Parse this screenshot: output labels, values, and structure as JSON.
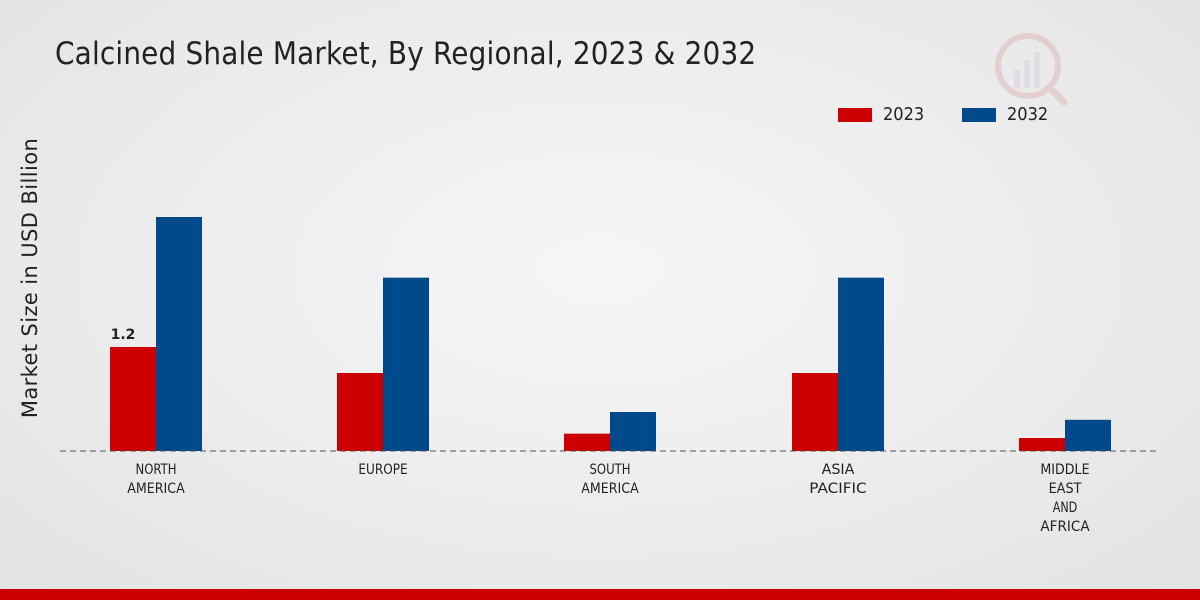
{
  "chart_data": {
    "type": "bar",
    "title": "Calcined Shale Market, By Regional, 2023 & 2032",
    "xlabel": "",
    "ylabel": "Market Size in USD Billion",
    "ylim": [
      0,
      3.0
    ],
    "categories": [
      [
        "NORTH",
        "AMERICA"
      ],
      [
        "EUROPE"
      ],
      [
        "SOUTH",
        "AMERICA"
      ],
      [
        "ASIA",
        "PACIFIC"
      ],
      [
        "MIDDLE",
        "EAST",
        "AND",
        "AFRICA"
      ]
    ],
    "series": [
      {
        "name": "2023",
        "color": "#cc0000",
        "values": [
          1.2,
          0.9,
          0.2,
          0.9,
          0.15
        ]
      },
      {
        "name": "2032",
        "color": "#004a8c",
        "values": [
          2.7,
          2.0,
          0.45,
          2.0,
          0.36
        ]
      }
    ],
    "data_labels": [
      {
        "series": 0,
        "index": 0,
        "text": "1.2"
      }
    ],
    "legend_position": "top-right",
    "grid": false
  }
}
